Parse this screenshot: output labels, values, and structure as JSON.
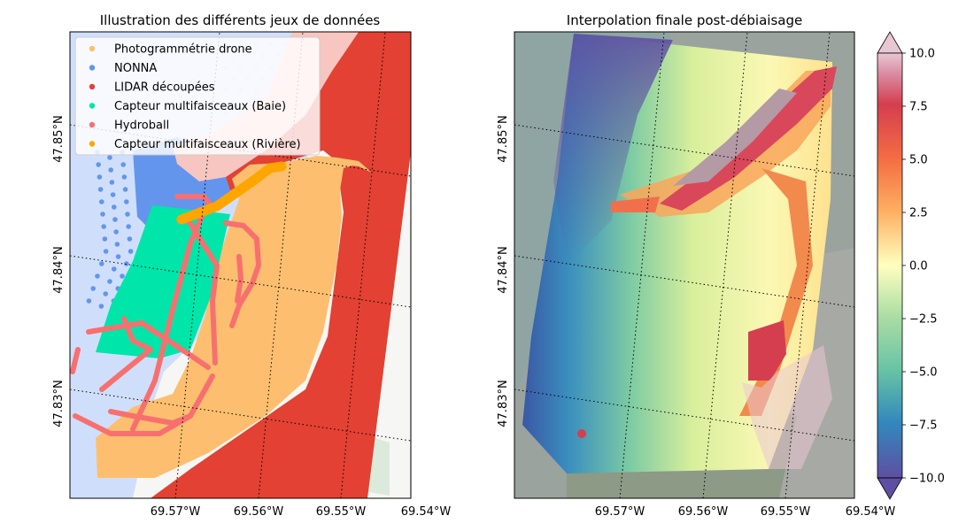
{
  "chart_data": [
    {
      "type": "map",
      "title": "Illustration des différents jeux de données",
      "x_ticks": [
        "69.57°W",
        "69.56°W",
        "69.55°W",
        "69.54°W"
      ],
      "y_ticks": [
        "47.83°N",
        "47.84°N",
        "47.85°N"
      ],
      "grid": true,
      "legend_position": "top-left",
      "series": [
        {
          "name": "Photogrammétrie drone",
          "color": "#fdbf6f"
        },
        {
          "name": "NONNA",
          "color": "#6495ed"
        },
        {
          "name": "LIDAR découpées",
          "color": "#e34133"
        },
        {
          "name": "Capteur multifaisceaux (Baie)",
          "color": "#00e5aa"
        },
        {
          "name": "Hydroball",
          "color": "#f7706f"
        },
        {
          "name": "Capteur multifaisceaux (Rivière)",
          "color": "#ffa500"
        }
      ]
    },
    {
      "type": "heatmap",
      "title": "Interpolation finale post-débiaisage",
      "x_ticks": [
        "69.57°W",
        "69.56°W",
        "69.55°W",
        "69.54°W"
      ],
      "y_ticks": [
        "47.83°N",
        "47.84°N",
        "47.85°N"
      ],
      "grid": true,
      "colorbar": {
        "range": [
          -10,
          10
        ],
        "ticks": [
          "10.0",
          "7.5",
          "5.0",
          "2.5",
          "0.0",
          "−2.5",
          "−5.0",
          "−7.5",
          "−10.0"
        ],
        "colormap": "Spectral_r",
        "extend": "both"
      }
    }
  ]
}
